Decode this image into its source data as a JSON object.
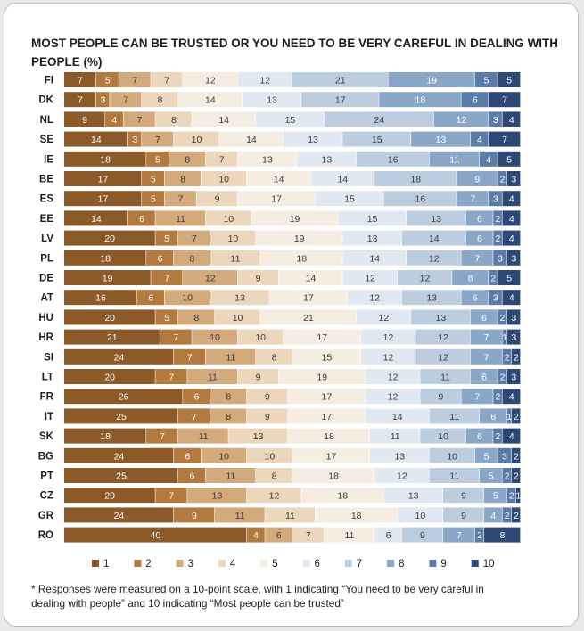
{
  "title_line1": "MOST PEOPLE CAN BE TRUSTED OR YOU NEED TO BE VERY CAREFUL IN DEALING WITH",
  "title_line2": "PEOPLE (%)",
  "note_line1": "* Responses were measured on a 10-point scale, with 1 indicating “You need to be very careful in",
  "note_line2": "dealing with people” and 10 indicating “Most people can be trusted”",
  "colors": [
    "#8b5a28",
    "#b27a3f",
    "#d2aa7c",
    "#ecd6bc",
    "#f6ede2",
    "#e0e8f1",
    "#bdcde0",
    "#8aa7c8",
    "#5c7ca8",
    "#2e4876"
  ],
  "chart_data": {
    "type": "bar",
    "orientation": "horizontal",
    "stacked": true,
    "title": "MOST PEOPLE CAN BE TRUSTED OR YOU NEED TO BE VERY CAREFUL IN DEALING WITH PEOPLE (%)",
    "categories": [
      "FI",
      "DK",
      "NL",
      "SE",
      "IE",
      "BE",
      "ES",
      "EE",
      "LV",
      "PL",
      "DE",
      "AT",
      "HU",
      "HR",
      "SI",
      "LT",
      "FR",
      "IT",
      "SK",
      "BG",
      "PT",
      "CZ",
      "GR",
      "RO"
    ],
    "xlim": [
      0,
      100
    ],
    "legend_position": "bottom",
    "series": [
      {
        "name": "1",
        "values": [
          7,
          7,
          9,
          14,
          18,
          17,
          17,
          14,
          20,
          18,
          19,
          16,
          20,
          21,
          24,
          20,
          26,
          25,
          18,
          24,
          25,
          20,
          24,
          40
        ]
      },
      {
        "name": "2",
        "values": [
          5,
          3,
          4,
          3,
          5,
          5,
          5,
          6,
          5,
          6,
          7,
          6,
          5,
          7,
          7,
          7,
          6,
          7,
          7,
          6,
          6,
          7,
          9,
          4
        ]
      },
      {
        "name": "3",
        "values": [
          7,
          7,
          7,
          7,
          8,
          8,
          7,
          11,
          7,
          8,
          12,
          10,
          8,
          10,
          11,
          11,
          8,
          8,
          11,
          10,
          11,
          13,
          11,
          6
        ]
      },
      {
        "name": "4",
        "values": [
          7,
          8,
          8,
          10,
          7,
          10,
          9,
          10,
          10,
          11,
          9,
          13,
          10,
          10,
          8,
          9,
          9,
          9,
          13,
          10,
          8,
          12,
          11,
          7
        ]
      },
      {
        "name": "5",
        "values": [
          12,
          14,
          14,
          14,
          13,
          14,
          17,
          19,
          19,
          18,
          14,
          17,
          21,
          17,
          15,
          19,
          17,
          17,
          18,
          17,
          18,
          18,
          18,
          11
        ]
      },
      {
        "name": "6",
        "values": [
          12,
          13,
          15,
          13,
          13,
          14,
          15,
          15,
          13,
          14,
          12,
          12,
          12,
          12,
          12,
          12,
          12,
          14,
          11,
          13,
          12,
          13,
          10,
          6
        ]
      },
      {
        "name": "7",
        "values": [
          21,
          17,
          24,
          15,
          16,
          18,
          16,
          13,
          14,
          12,
          12,
          13,
          13,
          12,
          12,
          11,
          9,
          11,
          10,
          10,
          11,
          9,
          9,
          9
        ]
      },
      {
        "name": "8",
        "values": [
          19,
          18,
          12,
          13,
          11,
          9,
          7,
          6,
          6,
          7,
          8,
          6,
          6,
          7,
          7,
          6,
          7,
          6,
          6,
          5,
          5,
          5,
          4,
          7
        ]
      },
      {
        "name": "9",
        "values": [
          5,
          6,
          3,
          4,
          4,
          2,
          3,
          2,
          2,
          3,
          2,
          3,
          2,
          1,
          2,
          2,
          2,
          1,
          2,
          3,
          2,
          2,
          2,
          2
        ]
      },
      {
        "name": "10",
        "values": [
          5,
          7,
          4,
          7,
          5,
          3,
          4,
          4,
          4,
          3,
          5,
          4,
          3,
          3,
          2,
          3,
          4,
          2,
          4,
          2,
          2,
          1,
          2,
          8
        ]
      }
    ]
  }
}
